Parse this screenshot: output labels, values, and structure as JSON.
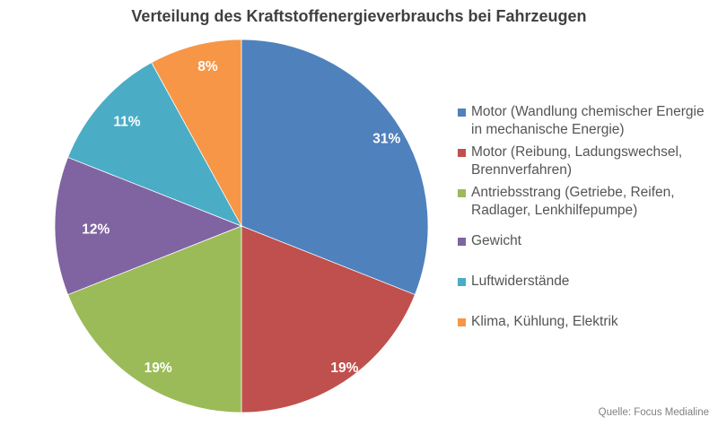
{
  "title": "Verteilung des Kraftstoffenergieverbrauchs bei Fahrzeugen",
  "source": "Quelle: Focus Medialine",
  "chart_data": {
    "type": "pie",
    "title": "Verteilung des Kraftstoffenergieverbrauchs bei Fahrzeugen",
    "start_angle_deg": 0,
    "direction": "clockwise",
    "legend_position": "right",
    "value_suffix": "%",
    "data_label_color": "#FFFFFF",
    "slices": [
      {
        "label": "Motor (Wandlung chemischer Energie in mechanische Energie)",
        "value": 31,
        "color": "#4F81BD",
        "label_r": 0.9,
        "label_nudge": [
          7,
          8
        ]
      },
      {
        "label": "Motor (Reibung, Ladungswechsel, Brennverfahren)",
        "value": 19,
        "color": "#C0504D",
        "label_r": 0.94,
        "label_nudge": [
          5,
          -3
        ]
      },
      {
        "label": "Antriebsstrang (Getriebe, Reifen, Radlager, Lenkhilfepumpe)",
        "value": 19,
        "color": "#9BBB59",
        "label_r": 0.88,
        "label_nudge": [
          10,
          7
        ]
      },
      {
        "label": "Gewicht",
        "value": 12,
        "color": "#8064A2",
        "label_r": 0.77,
        "label_nudge": [
          -2,
          4
        ]
      },
      {
        "label": "Luftwiderstände",
        "value": 11,
        "color": "#4BACC6",
        "label_r": 0.83,
        "label_nudge": [
          2,
          -2
        ]
      },
      {
        "label": "Klima, Kühlung, Elektrik",
        "value": 8,
        "color": "#F79646",
        "label_r": 0.88,
        "label_nudge": [
          8,
          0
        ]
      }
    ]
  }
}
